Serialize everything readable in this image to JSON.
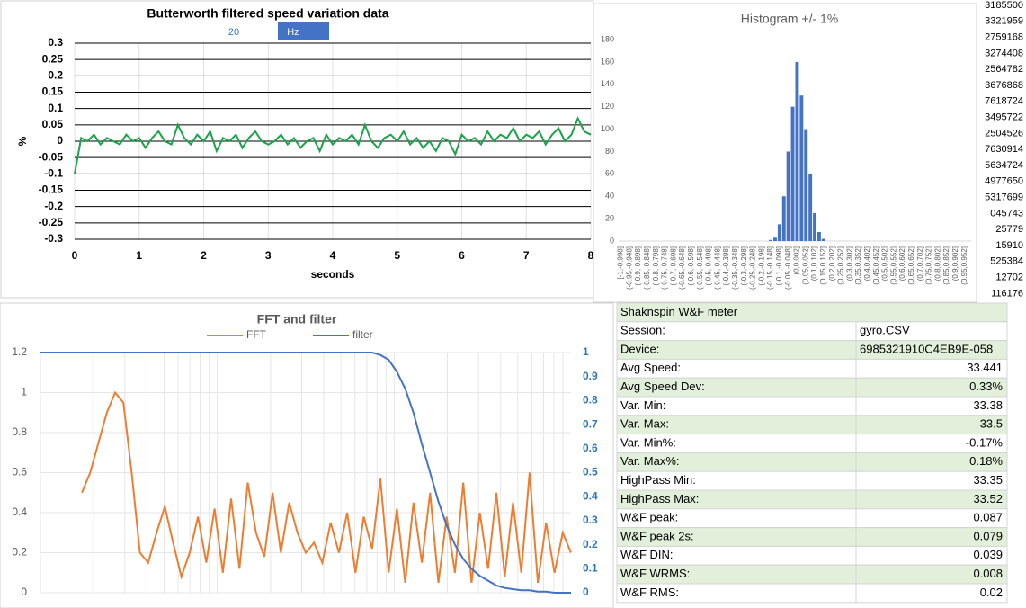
{
  "chart_data": [
    {
      "type": "line",
      "title": "Butterworth filtered speed variation data",
      "control_value": "20",
      "control_unit": "Hz",
      "xlabel": "seconds",
      "ylabel": "%",
      "x": [
        0,
        0.1,
        0.2,
        0.3,
        0.4,
        0.5,
        0.6,
        0.7,
        0.8,
        0.9,
        1,
        1.1,
        1.2,
        1.3,
        1.4,
        1.5,
        1.6,
        1.7,
        1.8,
        1.9,
        2,
        2.1,
        2.2,
        2.3,
        2.4,
        2.5,
        2.6,
        2.7,
        2.8,
        2.9,
        3,
        3.1,
        3.2,
        3.3,
        3.4,
        3.5,
        3.6,
        3.7,
        3.8,
        3.9,
        4,
        4.1,
        4.2,
        4.3,
        4.4,
        4.5,
        4.6,
        4.7,
        4.8,
        4.9,
        5,
        5.1,
        5.2,
        5.3,
        5.4,
        5.5,
        5.6,
        5.7,
        5.8,
        5.9,
        6,
        6.1,
        6.2,
        6.3,
        6.4,
        6.5,
        6.6,
        6.7,
        6.8,
        6.9,
        7,
        7.1,
        7.2,
        7.3,
        7.4,
        7.5,
        7.6,
        7.7,
        7.8,
        7.9,
        8
      ],
      "series": [
        {
          "color": "#1aa34a",
          "values": [
            -0.1,
            0.01,
            0.0,
            0.02,
            -0.01,
            0.01,
            0.0,
            -0.01,
            0.02,
            0.0,
            0.01,
            -0.02,
            0.01,
            0.03,
            0.0,
            -0.01,
            0.05,
            0.01,
            -0.01,
            0.02,
            0.0,
            0.03,
            -0.03,
            0.01,
            0.0,
            0.02,
            -0.02,
            0.01,
            0.03,
            0.0,
            -0.01,
            0.0,
            0.02,
            -0.01,
            0.01,
            -0.02,
            0.0,
            0.01,
            -0.03,
            0.02,
            -0.01,
            0.01,
            0.0,
            0.02,
            -0.01,
            0.05,
            0.0,
            -0.02,
            0.01,
            0.02,
            0.0,
            0.03,
            -0.01,
            0.01,
            -0.02,
            0.0,
            -0.03,
            0.01,
            0.0,
            -0.04,
            0.02,
            0.0,
            0.01,
            -0.01,
            0.03,
            0.0,
            0.02,
            0.01,
            0.04,
            0.0,
            0.02,
            0.01,
            0.03,
            -0.01,
            0.02,
            0.04,
            0.0,
            0.02,
            0.07,
            0.03,
            0.02
          ]
        }
      ],
      "xlim": [
        0,
        8
      ],
      "xticks": [
        0,
        1,
        2,
        3,
        4,
        5,
        6,
        7,
        8
      ],
      "ylim": [
        -0.3,
        0.3
      ],
      "yticks": [
        -0.3,
        -0.25,
        -0.2,
        -0.15,
        -0.1,
        -0.05,
        0,
        0.05,
        0.1,
        0.15,
        0.2,
        0.25,
        0.3
      ],
      "grid": true
    },
    {
      "type": "bar",
      "title": "Histogram +/- 1%",
      "color": "#4472c4",
      "categories": [
        "[-1,-0.998]",
        null,
        "(-0.95,-0.948]",
        null,
        "(-0.9,-0.898]",
        null,
        "(-0.85,-0.848]",
        null,
        "(-0.8,-0.798]",
        null,
        "(-0.75,-0.748]",
        null,
        "(-0.7,-0.698]",
        null,
        "(-0.65,-0.648]",
        null,
        "(-0.6,-0.598]",
        null,
        "(-0.55,-0.548]",
        null,
        "(-0.5,-0.498]",
        null,
        "(-0.45,-0.448]",
        null,
        "(-0.4,-0.398]",
        null,
        "(-0.35,-0.348]",
        null,
        "(-0.3,-0.298]",
        null,
        "(-0.25,-0.248]",
        null,
        "(-0.2,-0.198]",
        null,
        "(-0.15,-0.148]",
        null,
        "(-0.1,-0.098]",
        null,
        "(-0.05,-0.048]",
        null,
        "(0,0.002]",
        null,
        "(0.05,0.052]",
        null,
        "(0.1,0.102]",
        null,
        "(0.15,0.152]",
        null,
        "(0.2,0.202]",
        null,
        "(0.25,0.252]",
        null,
        "(0.3,0.302]",
        null,
        "(0.35,0.352]",
        null,
        "(0.4,0.402]",
        null,
        "(0.45,0.452]",
        null,
        "(0.5,0.502]",
        null,
        "(0.55,0.552]",
        null,
        "(0.6,0.602]",
        null,
        "(0.65,0.652]",
        null,
        "(0.7,0.702]",
        null,
        "(0.75,0.752]",
        null,
        "(0.8,0.802]",
        null,
        "(0.85,0.852]",
        null,
        "(0.9,0.902]",
        null,
        "(0.95,0.952]",
        null
      ],
      "values": [
        0,
        0,
        0,
        0,
        0,
        0,
        0,
        0,
        0,
        0,
        0,
        0,
        0,
        0,
        0,
        0,
        0,
        0,
        0,
        0,
        0,
        0,
        0,
        0,
        0,
        0,
        0,
        0,
        0,
        0,
        0,
        0,
        0,
        0,
        1,
        3,
        15,
        40,
        80,
        120,
        160,
        130,
        100,
        60,
        25,
        8,
        2,
        0,
        0,
        0,
        0,
        0,
        0,
        0,
        0,
        0,
        0,
        0,
        0,
        0,
        0,
        0,
        0,
        0,
        0,
        0,
        0,
        0,
        0,
        0,
        0,
        0,
        0,
        0,
        0,
        0,
        0,
        0,
        0,
        0
      ],
      "ylim": [
        0,
        180
      ],
      "yticks": [
        0,
        20,
        40,
        60,
        80,
        100,
        120,
        140,
        160,
        180
      ]
    },
    {
      "type": "line",
      "title": "FFT and filter",
      "xgrid": "log",
      "series": [
        {
          "name": "FFT",
          "color": "#ed7d31",
          "values": [
            null,
            null,
            null,
            null,
            null,
            0.5,
            0.6,
            0.75,
            0.9,
            1.0,
            0.95,
            0.6,
            0.2,
            0.15,
            0.3,
            0.43,
            0.25,
            0.08,
            0.2,
            0.38,
            0.15,
            0.42,
            0.1,
            0.47,
            0.12,
            0.55,
            0.3,
            0.18,
            0.5,
            0.2,
            0.45,
            0.3,
            0.2,
            0.25,
            0.15,
            0.35,
            0.2,
            0.4,
            0.1,
            0.38,
            0.22,
            0.57,
            0.1,
            0.42,
            0.05,
            0.45,
            0.15,
            0.5,
            0.05,
            0.38,
            0.1,
            0.55,
            0.05,
            0.4,
            0.12,
            0.5,
            0.08,
            0.45,
            0.1,
            0.6,
            0.05,
            0.35,
            0.1,
            0.3,
            0.2
          ]
        },
        {
          "name": "filter",
          "color": "#4472c4",
          "axis": "y2",
          "values": [
            1,
            1,
            1,
            1,
            1,
            1,
            1,
            1,
            1,
            1,
            1,
            1,
            1,
            1,
            1,
            1,
            1,
            1,
            1,
            1,
            1,
            1,
            1,
            1,
            1,
            1,
            1,
            1,
            1,
            1,
            1,
            1,
            1,
            1,
            1,
            1,
            1,
            1,
            1,
            1,
            1,
            0.99,
            0.97,
            0.92,
            0.85,
            0.75,
            0.62,
            0.5,
            0.38,
            0.28,
            0.2,
            0.14,
            0.1,
            0.07,
            0.05,
            0.03,
            0.02,
            0.015,
            0.01,
            0.01,
            0.005,
            0.005,
            0,
            0,
            0
          ]
        }
      ],
      "ylim": [
        0,
        1.2
      ],
      "yticks": [
        0,
        0.2,
        0.4,
        0.6,
        0.8,
        1,
        1.2
      ],
      "y2lim": [
        0,
        1
      ],
      "y2ticks": [
        0,
        0.1,
        0.2,
        0.3,
        0.4,
        0.5,
        0.6,
        0.7,
        0.8,
        0.9,
        1
      ]
    }
  ],
  "table": {
    "title": "Shaknspin W&F meter",
    "rows": [
      [
        "Session:",
        "gyro.CSV"
      ],
      [
        "Device:",
        "6985321910C4EB9E-058"
      ],
      [
        "Avg Speed:",
        "33.441"
      ],
      [
        "Avg Speed Dev:",
        "0.33%"
      ],
      [
        "Var. Min:",
        "33.38"
      ],
      [
        "Var. Max:",
        "33.5"
      ],
      [
        "Var. Min%:",
        "-0.17%"
      ],
      [
        "Var. Max%:",
        "0.18%"
      ],
      [
        "HighPass Min:",
        "33.35"
      ],
      [
        "HighPass Max:",
        "33.52"
      ],
      [
        "W&F peak:",
        "0.087"
      ],
      [
        "W&F peak 2s:",
        "0.079"
      ],
      [
        "W&F DIN:",
        "0.039"
      ],
      [
        "W&F WRMS:",
        "0.008"
      ],
      [
        "W&F RMS:",
        "0.02"
      ]
    ]
  },
  "sheet_fragments": [
    "3185500",
    "3321959",
    "2759168",
    "3274408",
    "2564782",
    "3676868",
    "7618724",
    "3495722",
    "2504526",
    "7630914",
    "5634724",
    "4977650",
    "5317699",
    "045743",
    "25779",
    "15910",
    "525384",
    "12702",
    "116176"
  ]
}
